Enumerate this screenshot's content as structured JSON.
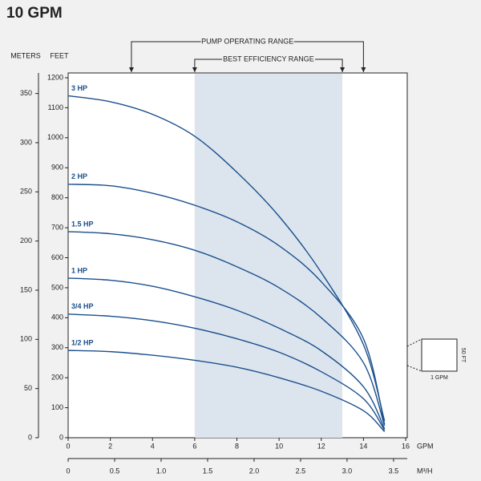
{
  "chart_data": {
    "type": "line",
    "title": "10 GPM",
    "y_label": "FEET",
    "y2_label": "METERS",
    "x_label": "GPM",
    "x2_label": "M³/H",
    "x": [
      0,
      2,
      4,
      6,
      8,
      10,
      12,
      14,
      15
    ],
    "series": [
      {
        "name": "3 HP",
        "color": "#1b4f8c",
        "values": [
          1140,
          1120,
          1078,
          1005,
          885,
          738,
          551,
          310,
          56
        ]
      },
      {
        "name": "2 HP",
        "color": "#1b4f8c",
        "values": [
          845,
          840,
          815,
          775,
          720,
          640,
          520,
          330,
          45
        ]
      },
      {
        "name": "1.5 HP",
        "color": "#1b4f8c",
        "values": [
          687,
          680,
          660,
          625,
          570,
          500,
          400,
          250,
          40
        ]
      },
      {
        "name": "1 HP",
        "color": "#1b4f8c",
        "values": [
          532,
          525,
          505,
          470,
          425,
          365,
          290,
          170,
          30
        ]
      },
      {
        "name": "3/4 HP",
        "color": "#1b4f8c",
        "values": [
          412,
          405,
          390,
          365,
          330,
          285,
          220,
          130,
          25
        ]
      },
      {
        "name": "1/2 HP",
        "color": "#1b4f8c",
        "values": [
          291,
          287,
          275,
          258,
          235,
          200,
          155,
          90,
          20
        ]
      }
    ],
    "xlim": [
      0,
      16
    ],
    "xticks": [
      0,
      2,
      4,
      6,
      8,
      10,
      12,
      14,
      16
    ],
    "ylim": [
      0,
      1200
    ],
    "yticks": [
      0,
      100,
      200,
      300,
      400,
      500,
      600,
      700,
      800,
      900,
      1000,
      1100,
      1200
    ],
    "y2lim": [
      0,
      366
    ],
    "y2ticks": [
      0,
      50,
      100,
      150,
      200,
      250,
      300,
      350
    ],
    "x2lim": [
      0,
      3.63
    ],
    "x2ticks": [
      0,
      0.5,
      {
        "value": 1,
        "label": "1.0"
      },
      1.5,
      {
        "value": 2,
        "label": "2.0"
      },
      2.5,
      {
        "value": 3,
        "label": "3.0"
      },
      3.5
    ],
    "operating_range": {
      "label": "PUMP OPERATING RANGE",
      "range": [
        3,
        14
      ]
    },
    "best_efficiency_range": {
      "label": "BEST EFFICIENCY RANGE",
      "range": [
        6,
        13
      ],
      "color": "#dce5ee"
    },
    "inset": {
      "x_label": "1 GPM",
      "y_label": "50 FT"
    }
  }
}
